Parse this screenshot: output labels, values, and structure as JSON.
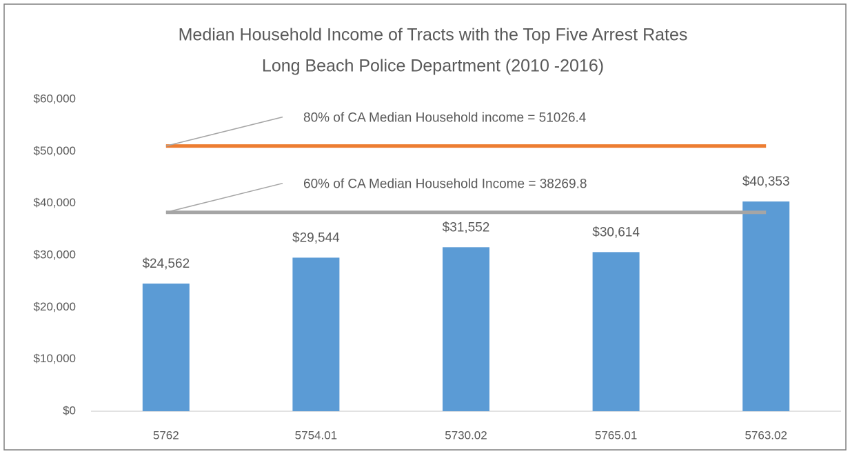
{
  "chart_data": {
    "type": "bar",
    "title": "Median Household Income of Tracts with the Top Five Arrest Rates",
    "subtitle": "Long Beach Police Department  (2010 -2016)",
    "categories": [
      "5762",
      "5754.01",
      "5730.02",
      "5765.01",
      "5763.02"
    ],
    "values": [
      24562,
      29544,
      31552,
      30614,
      40353
    ],
    "value_labels": [
      "$24,562",
      "$29,544",
      "$31,552",
      "$30,614",
      "$40,353"
    ],
    "color": "#5b9bd5",
    "ylim": [
      0,
      60000
    ],
    "yticks": [
      {
        "value": 0,
        "label": "$0"
      },
      {
        "value": 10000,
        "label": "$10,000"
      },
      {
        "value": 20000,
        "label": "$20,000"
      },
      {
        "value": 30000,
        "label": "$30,000"
      },
      {
        "value": 40000,
        "label": "$40,000"
      },
      {
        "value": 50000,
        "label": "$50,000"
      },
      {
        "value": 60000,
        "label": "$60,000"
      }
    ],
    "grid": false,
    "reference_lines": [
      {
        "value": 51026.4,
        "color": "#ed7d31",
        "label": "80% of CA Median Household income = 51026.4"
      },
      {
        "value": 38269.8,
        "color": "#a5a5a5",
        "label": "60% of CA Median Household Income = 38269.8"
      }
    ]
  }
}
